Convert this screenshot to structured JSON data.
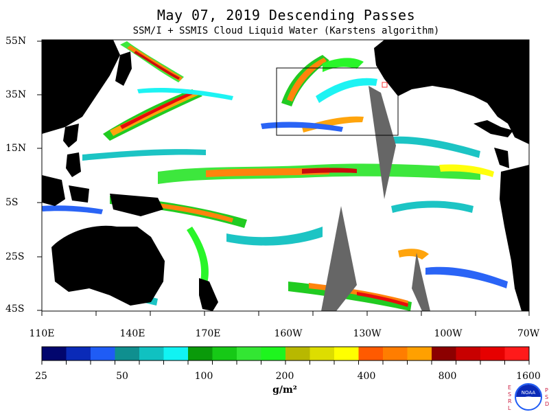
{
  "header": {
    "title": "May 07, 2019  Descending Passes",
    "subtitle": "SSM/I + SSMIS Cloud Liquid Water (Karstens algorithm)"
  },
  "map": {
    "latitude_labels": [
      "55N",
      "35N",
      "15N",
      "5S",
      "25S",
      "45S"
    ],
    "longitude_labels": [
      "110E",
      "140E",
      "170E",
      "160W",
      "130W",
      "100W",
      "70W"
    ],
    "colors": {
      "land": "#000000",
      "no_data_gap": "#666666",
      "ocean_clear": "#ffffff",
      "box_outline": "#000000"
    }
  },
  "colorbar": {
    "swatches": [
      "#02066e",
      "#0a2ab8",
      "#1f5cf5",
      "#0f8f8f",
      "#10c1c1",
      "#11f3f3",
      "#0a9a0a",
      "#16c916",
      "#33e633",
      "#1ef51e",
      "#b8b800",
      "#dddd00",
      "#ffff00",
      "#ff5a00",
      "#ff7d00",
      "#ffa000",
      "#8c0000",
      "#c80000",
      "#e60000",
      "#ff1a1a"
    ],
    "tick_labels": [
      "25",
      "50",
      "100",
      "200",
      "400",
      "800",
      "1600"
    ],
    "units": "g/m²"
  },
  "logo": {
    "left_letters": [
      "E",
      "S",
      "R",
      "L"
    ],
    "right_letters": [
      "P",
      "S",
      "D"
    ],
    "center_text": "NOAA"
  }
}
